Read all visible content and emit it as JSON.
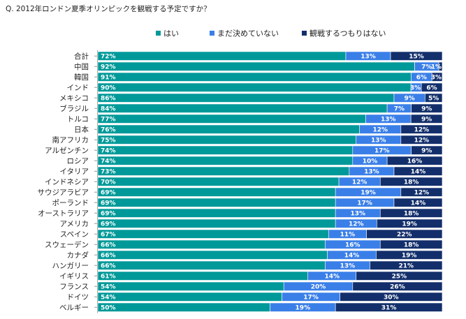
{
  "title": "Q.  2012年ロンドン夏季オリンピックを観戦する予定ですか？",
  "chart_data": {
    "type": "bar",
    "orientation": "horizontal",
    "stacked": true,
    "percent_axis": true,
    "legend_position": "top-center",
    "grid": false,
    "categories": [
      "合計",
      "中国",
      "韓国",
      "インド",
      "メキシコ",
      "ブラジル",
      "トルコ",
      "日本",
      "南アフリカ",
      "アルゼンチン",
      "ロシア",
      "イタリア",
      "インドネシア",
      "サウジアラビア",
      "ポーランド",
      "オーストラリア",
      "アメリカ",
      "スペイン",
      "スウェーデン",
      "カナダ",
      "ハンガリー",
      "イギリス",
      "フランス",
      "ドイツ",
      "ベルギー"
    ],
    "series": [
      {
        "name": "はい",
        "color": "#009999",
        "values": [
          72,
          92,
          91,
          90,
          86,
          84,
          77,
          76,
          75,
          74,
          74,
          73,
          70,
          69,
          69,
          69,
          69,
          67,
          66,
          66,
          66,
          61,
          54,
          54,
          50
        ]
      },
      {
        "name": "まだ決めていない",
        "color": "#3A7FE8",
        "values": [
          13,
          7,
          6,
          3,
          9,
          7,
          13,
          12,
          13,
          17,
          10,
          13,
          12,
          19,
          17,
          13,
          12,
          11,
          16,
          14,
          13,
          14,
          20,
          17,
          19
        ]
      },
      {
        "name": "観戦するつもりはない",
        "color": "#132F6B",
        "values": [
          15,
          1,
          3,
          6,
          5,
          9,
          9,
          12,
          12,
          9,
          16,
          14,
          18,
          12,
          14,
          18,
          19,
          22,
          18,
          19,
          21,
          25,
          26,
          30,
          31
        ]
      }
    ],
    "labels": [
      [
        "72%",
        "13%",
        "15%"
      ],
      [
        "92%",
        "7%",
        "1%"
      ],
      [
        "91%",
        "6%",
        "3%"
      ],
      [
        "90%",
        "3%",
        "6%"
      ],
      [
        "86%",
        "9%",
        "5%"
      ],
      [
        "84%",
        "7%",
        "9%"
      ],
      [
        "77%",
        "13%",
        "9%"
      ],
      [
        "76%",
        "12%",
        "12%"
      ],
      [
        "75%",
        "13%",
        "12%"
      ],
      [
        "74%",
        "17%",
        "9%"
      ],
      [
        "74%",
        "10%",
        "16%"
      ],
      [
        "73%",
        "13%",
        "14%"
      ],
      [
        "70%",
        "12%",
        "18%"
      ],
      [
        "69%",
        "19%",
        "12%"
      ],
      [
        "69%",
        "17%",
        "14%"
      ],
      [
        "69%",
        "13%",
        "18%"
      ],
      [
        "69%",
        "12%",
        "19%"
      ],
      [
        "67%",
        "11%",
        "22%"
      ],
      [
        "66%",
        "16%",
        "18%"
      ],
      [
        "66%",
        "14%",
        "19%"
      ],
      [
        "66%",
        "13%",
        "21%"
      ],
      [
        "61%",
        "14%",
        "25%"
      ],
      [
        "54%",
        "20%",
        "26%"
      ],
      [
        "54%",
        "17%",
        "30%"
      ],
      [
        "50%",
        "19%",
        "31%"
      ]
    ]
  }
}
